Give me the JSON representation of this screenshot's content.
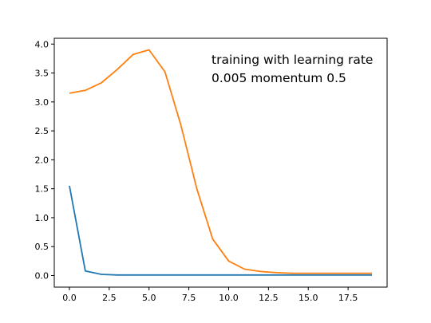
{
  "chart_data": {
    "type": "line",
    "title": "",
    "xlabel": "",
    "ylabel": "",
    "xlim": [
      -0.95,
      19.95
    ],
    "ylim": [
      -0.2,
      4.1
    ],
    "x_ticks": [
      0.0,
      2.5,
      5.0,
      7.5,
      10.0,
      12.5,
      15.0,
      17.5
    ],
    "x_tick_labels": [
      "0.0",
      "2.5",
      "5.0",
      "7.5",
      "10.0",
      "12.5",
      "15.0",
      "17.5"
    ],
    "y_ticks": [
      0.0,
      0.5,
      1.0,
      1.5,
      2.0,
      2.5,
      3.0,
      3.5,
      4.0
    ],
    "y_tick_labels": [
      "0.0",
      "0.5",
      "1.0",
      "1.5",
      "2.0",
      "2.5",
      "3.0",
      "3.5",
      "4.0"
    ],
    "grid": false,
    "legend": "none",
    "annotation": [
      "training with learning rate",
      "0.005 momentum 0.5"
    ],
    "series": [
      {
        "color": "#1f77b4",
        "x": [
          0,
          1,
          2,
          3,
          4,
          5,
          6,
          7,
          8,
          9,
          10,
          11,
          12,
          13,
          14,
          15,
          16,
          17,
          18,
          19
        ],
        "values": [
          1.55,
          0.08,
          0.02,
          0.01,
          0.01,
          0.01,
          0.01,
          0.01,
          0.01,
          0.01,
          0.01,
          0.01,
          0.01,
          0.01,
          0.01,
          0.01,
          0.01,
          0.01,
          0.01,
          0.01
        ]
      },
      {
        "color": "#ff7f0e",
        "x": [
          0,
          1,
          2,
          3,
          4,
          5,
          6,
          7,
          8,
          9,
          10,
          11,
          12,
          13,
          14,
          15,
          16,
          17,
          18,
          19
        ],
        "values": [
          3.15,
          3.2,
          3.33,
          3.56,
          3.82,
          3.9,
          3.52,
          2.6,
          1.5,
          0.63,
          0.25,
          0.11,
          0.07,
          0.05,
          0.04,
          0.04,
          0.04,
          0.04,
          0.04,
          0.04
        ]
      }
    ]
  }
}
